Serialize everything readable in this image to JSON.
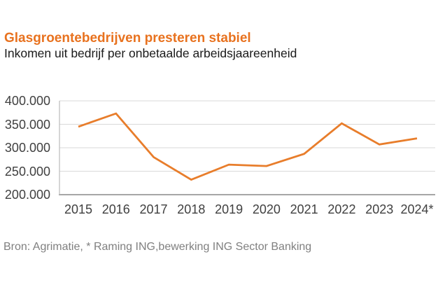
{
  "header": {
    "title": "Glasgroentebedrijven presteren stabiel",
    "subtitle": "Inkomen uit bedrijf per onbetaalde arbeidsjaareenheid"
  },
  "chart_data": {
    "type": "line",
    "title": "Glasgroentebedrijven presteren stabiel",
    "subtitle": "Inkomen uit bedrijf per onbetaalde arbeidsjaareenheid",
    "categories": [
      "2015",
      "2016",
      "2017",
      "2018",
      "2019",
      "2020",
      "2021",
      "2022",
      "2023",
      "2024*"
    ],
    "series": [
      {
        "name": "Inkomen uit bedrijf per onbetaalde arbeidsjaareenheid",
        "values": [
          345000,
          373000,
          280000,
          232000,
          264000,
          261000,
          287000,
          352000,
          307000,
          320000
        ]
      }
    ],
    "ylim": [
      200000,
      400000
    ],
    "ytick_step": 50000,
    "ytick_labels": [
      "200.000",
      "250.000",
      "300.000",
      "350.000",
      "400.000"
    ],
    "xlabel": "",
    "ylabel": "",
    "grid": "horizontal",
    "legend": "none"
  },
  "footer": {
    "source": "Bron: Agrimatie, * Raming ING,bewerking ING Sector Banking"
  },
  "colors": {
    "title": "#e8721f",
    "line": "#e87d2b",
    "axis": "#a6a6a6",
    "axis_left": "#bfbfbf",
    "gridline": "#d9d9d9",
    "tick_text": "#404040",
    "source_text": "#808080"
  }
}
